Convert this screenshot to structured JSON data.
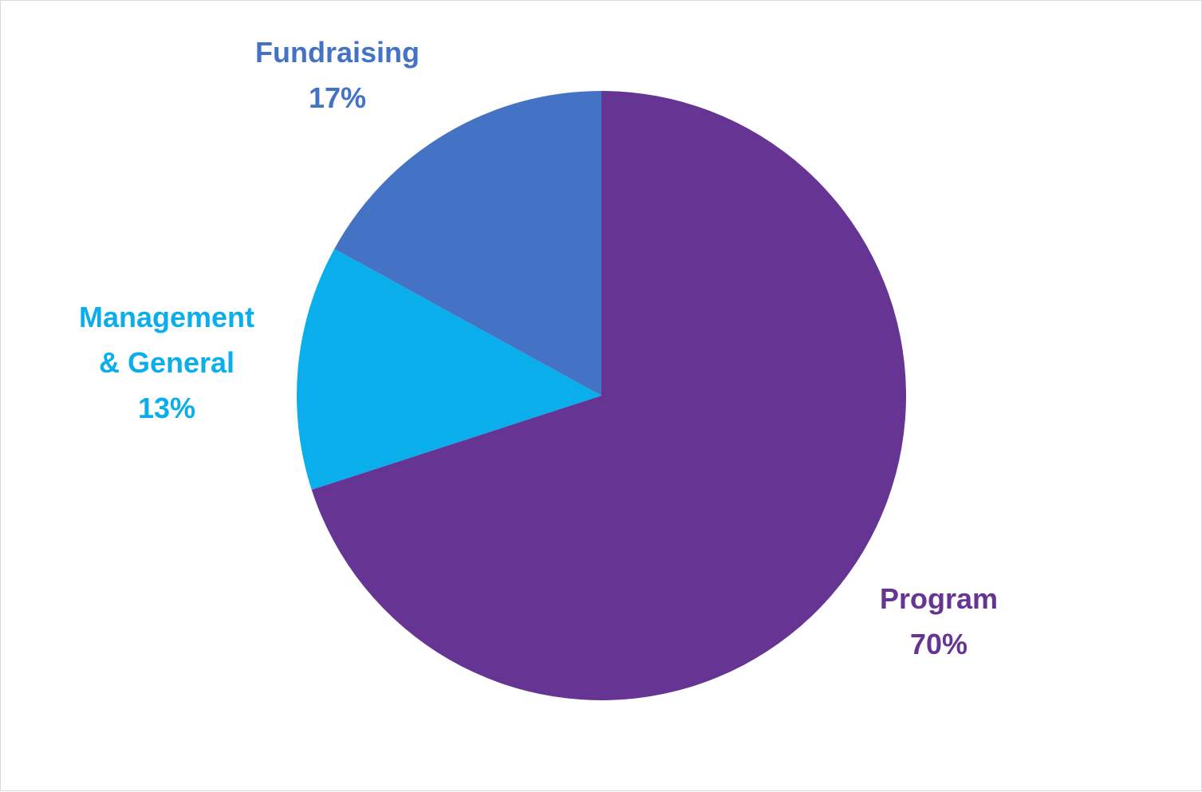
{
  "chart_data": {
    "type": "pie",
    "title": "",
    "slices": [
      {
        "label_lines": [
          "Program"
        ],
        "value": 70,
        "display": "70%",
        "color": "#663594"
      },
      {
        "label_lines": [
          "Management",
          "& General"
        ],
        "value": 13,
        "display": "13%",
        "color": "#0AAEEA"
      },
      {
        "label_lines": [
          "Fundraising"
        ],
        "value": 17,
        "display": "17%",
        "color": "#4472C4"
      }
    ],
    "start": "12 o'clock",
    "direction": "clockwise",
    "legend": "none",
    "data_labels": "outside"
  }
}
